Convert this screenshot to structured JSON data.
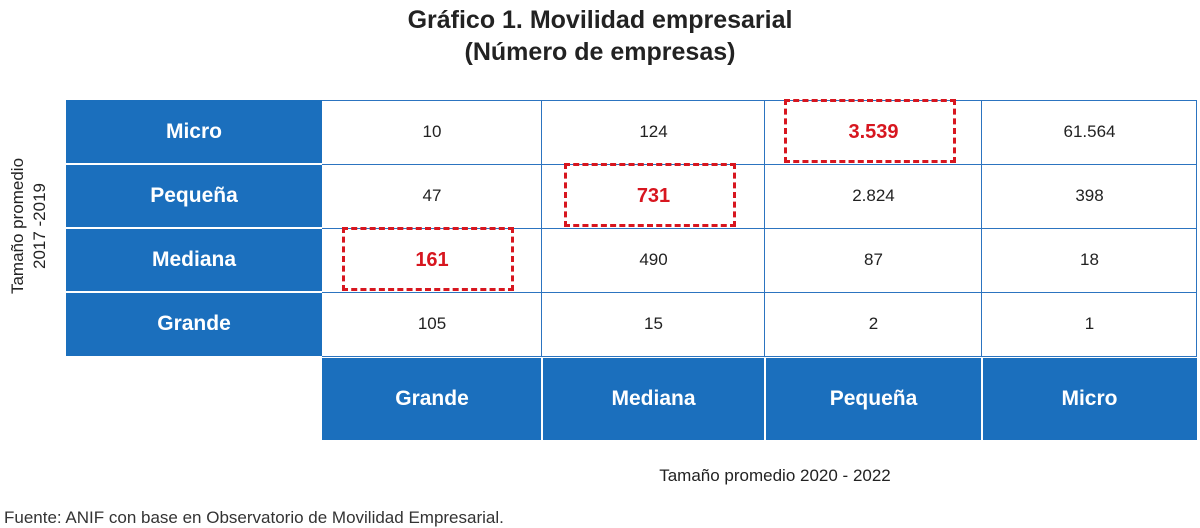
{
  "chart_data": {
    "type": "table",
    "title": "Gráfico 1. Movilidad empresarial",
    "subtitle": "(Número de empresas)",
    "ylabel_line1": "Tamaño promedio",
    "ylabel_line2": "2017 -2019",
    "xlabel": "Tamaño promedio 2020 - 2022",
    "rows": [
      "Micro",
      "Pequeña",
      "Mediana",
      "Grande"
    ],
    "columns": [
      "Grande",
      "Mediana",
      "Pequeña",
      "Micro"
    ],
    "values": [
      [
        "10",
        "124",
        "3.539",
        "61.564"
      ],
      [
        "47",
        "731",
        "2.824",
        "398"
      ],
      [
        "161",
        "490",
        "87",
        "18"
      ],
      [
        "105",
        "15",
        "2",
        "1"
      ]
    ],
    "highlighted_cells": [
      [
        0,
        2
      ],
      [
        1,
        1
      ],
      [
        2,
        0
      ]
    ],
    "colors": {
      "header": "#1b6fbd",
      "highlight": "#d7161f",
      "grid": "#2c74c0"
    }
  },
  "source": "Fuente: ANIF con base en Observatorio de Movilidad Empresarial."
}
